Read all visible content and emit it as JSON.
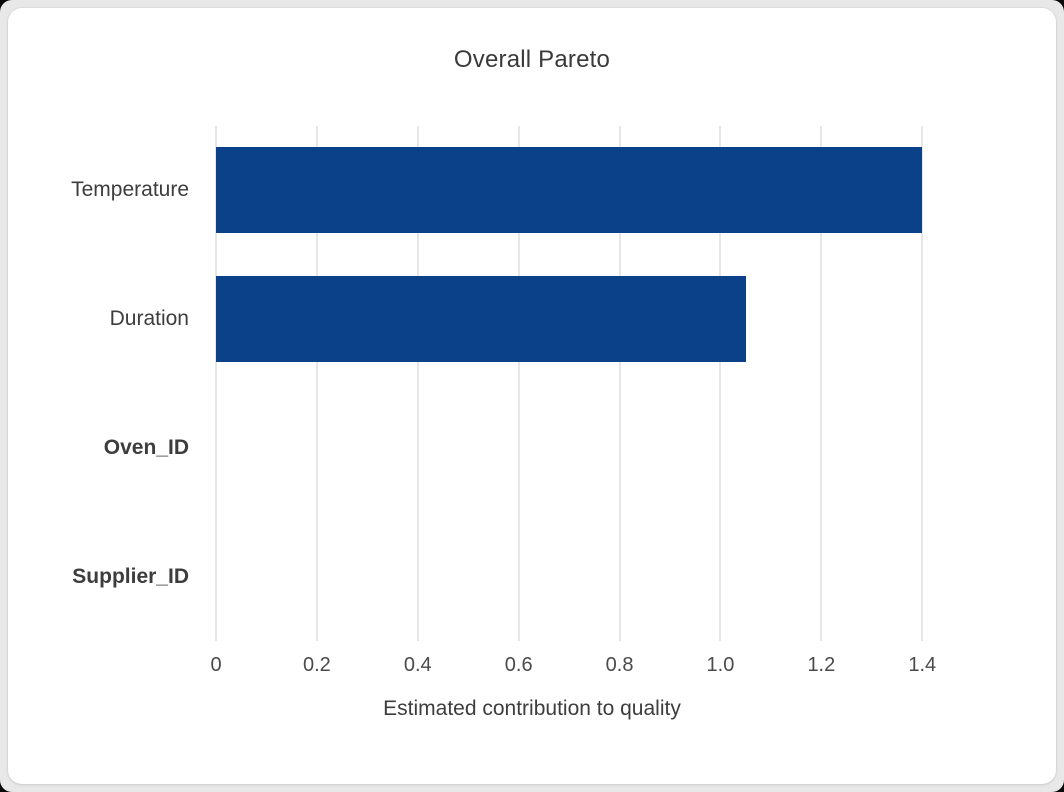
{
  "window": {
    "page_background": "#e8e8e8",
    "card_background": "#ffffff"
  },
  "chart_data": {
    "type": "bar",
    "orientation": "horizontal",
    "title": "Overall Pareto",
    "xlabel": "Estimated contribution to quality",
    "ylabel": "",
    "legend": "none",
    "grid": "vertical-only",
    "xlim": [
      0,
      1.57
    ],
    "bar_color": "#0a4189",
    "categories": [
      {
        "label": "Temperature",
        "value": 1.4,
        "emphasized": false
      },
      {
        "label": "Duration",
        "value": 1.05,
        "emphasized": false
      },
      {
        "label": "Oven_ID",
        "value": 0,
        "emphasized": true
      },
      {
        "label": "Supplier_ID",
        "value": 0,
        "emphasized": true
      }
    ],
    "xticks": [
      {
        "value": 0,
        "label": "0"
      },
      {
        "value": 0.2,
        "label": "0.2"
      },
      {
        "value": 0.4,
        "label": "0.4"
      },
      {
        "value": 0.6,
        "label": "0.6"
      },
      {
        "value": 0.8,
        "label": "0.8"
      },
      {
        "value": 1.0,
        "label": "1.0"
      },
      {
        "value": 1.2,
        "label": "1.2"
      },
      {
        "value": 1.4,
        "label": "1.4"
      }
    ]
  },
  "colors": {
    "bar": "#0a4189",
    "gridline": "#e7e7e7",
    "title_text": "#3a3a3a",
    "label_text": "#3d3d3d",
    "axis_text": "#4a4a4a"
  }
}
